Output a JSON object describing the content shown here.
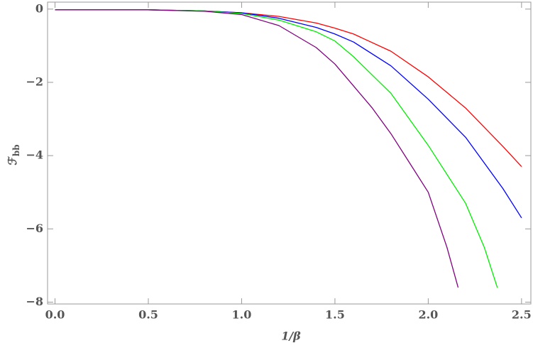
{
  "chart_data": {
    "type": "line",
    "x_label": "1/β",
    "y_label_main": "ℱ",
    "y_label_sub": "bb",
    "xlim": [
      -0.04,
      2.55
    ],
    "ylim": [
      -8.05,
      0.19
    ],
    "xticks": [
      {
        "value": 0,
        "label": "0.0"
      },
      0.5,
      {
        "value": 1,
        "label": "1.0"
      },
      1.5,
      {
        "value": 2,
        "label": "2.0"
      },
      2.5
    ],
    "yticks": [
      0,
      {
        "value": -2,
        "label": "−2"
      },
      {
        "value": -4,
        "label": "−4"
      },
      {
        "value": -6,
        "label": "−6"
      },
      {
        "value": -8,
        "label": "−8"
      }
    ],
    "series": [
      {
        "color": "#ff0000",
        "x": [
          0,
          0.5,
          0.8,
          1.0,
          1.2,
          1.4,
          1.5,
          1.6,
          1.8,
          2.0,
          2.2,
          2.4,
          2.5
        ],
        "values": [
          -0.02,
          -0.02,
          -0.05,
          -0.1,
          -0.2,
          -0.38,
          -0.52,
          -0.68,
          -1.15,
          -1.85,
          -2.7,
          -3.75,
          -4.3
        ]
      },
      {
        "color": "#0000ff",
        "x": [
          0,
          0.5,
          0.8,
          1.0,
          1.2,
          1.4,
          1.5,
          1.6,
          1.8,
          2.0,
          2.2,
          2.4,
          2.5
        ],
        "values": [
          -0.02,
          -0.02,
          -0.05,
          -0.1,
          -0.25,
          -0.5,
          -0.68,
          -0.9,
          -1.55,
          -2.46,
          -3.5,
          -4.9,
          -5.7
        ]
      },
      {
        "color": "#00ee00",
        "x": [
          0,
          0.5,
          0.8,
          1.0,
          1.2,
          1.4,
          1.5,
          1.6,
          1.8,
          2.0,
          2.2,
          2.3,
          2.37
        ],
        "values": [
          -0.02,
          -0.02,
          -0.05,
          -0.12,
          -0.3,
          -0.62,
          -0.87,
          -1.3,
          -2.3,
          -3.72,
          -5.3,
          -6.5,
          -7.6
        ]
      },
      {
        "color": "#800080",
        "x": [
          0,
          0.5,
          0.8,
          1.0,
          1.2,
          1.4,
          1.5,
          1.6,
          1.7,
          1.8,
          1.9,
          2.0,
          2.1,
          2.16
        ],
        "values": [
          -0.02,
          -0.02,
          -0.06,
          -0.15,
          -0.45,
          -1.05,
          -1.5,
          -2.1,
          -2.7,
          -3.4,
          -4.2,
          -5.0,
          -6.5,
          -7.6
        ]
      }
    ]
  }
}
